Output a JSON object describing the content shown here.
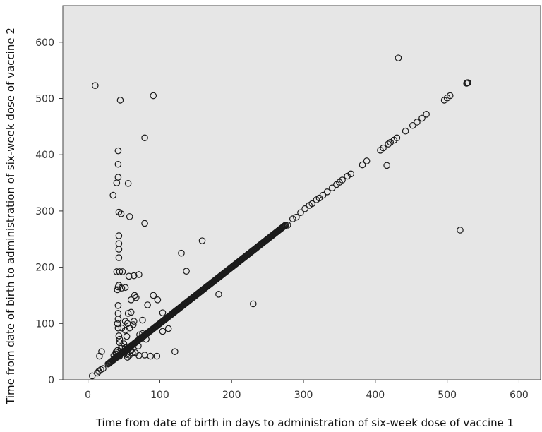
{
  "chart_data": {
    "type": "scatter",
    "title": "",
    "xlabel": "Time from date of birth in days to administration of six-week dose of vaccine 1",
    "ylabel": "Time from date of birth to administration of six-week dose of vaccine 2",
    "xlim": [
      -35,
      630
    ],
    "ylim": [
      0,
      665
    ],
    "xticks": [
      0,
      100,
      200,
      300,
      400,
      500,
      600
    ],
    "yticks": [
      0,
      100,
      200,
      300,
      400,
      500,
      600
    ],
    "grid": false,
    "legend": "none",
    "colors": {
      "plot_background": "#e6e6e6",
      "marker": "#1a1a1a"
    },
    "diagonal_band": {
      "x_start": 28,
      "x_end": 275,
      "step": 1
    },
    "points": [
      [
        6,
        7
      ],
      [
        13,
        12
      ],
      [
        15,
        15
      ],
      [
        18,
        18
      ],
      [
        21,
        20
      ],
      [
        16,
        42
      ],
      [
        19,
        50
      ],
      [
        10,
        523
      ],
      [
        45,
        497
      ],
      [
        91,
        505
      ],
      [
        79,
        430
      ],
      [
        432,
        572
      ],
      [
        518,
        266
      ],
      [
        230,
        135
      ],
      [
        182,
        152
      ],
      [
        416,
        381
      ],
      [
        528,
        528
      ],
      [
        529,
        528
      ],
      [
        42,
        407
      ],
      [
        42,
        383
      ],
      [
        42,
        360
      ],
      [
        40,
        350
      ],
      [
        56,
        349
      ],
      [
        35,
        328
      ],
      [
        43,
        298
      ],
      [
        46,
        295
      ],
      [
        58,
        290
      ],
      [
        79,
        278
      ],
      [
        43,
        256
      ],
      [
        43,
        242
      ],
      [
        43,
        232
      ],
      [
        43,
        217
      ],
      [
        130,
        225
      ],
      [
        159,
        247
      ],
      [
        137,
        193
      ],
      [
        40,
        192
      ],
      [
        44,
        192
      ],
      [
        48,
        192
      ],
      [
        71,
        187
      ],
      [
        64,
        185
      ],
      [
        57,
        184
      ],
      [
        43,
        168
      ],
      [
        42,
        165
      ],
      [
        47,
        163
      ],
      [
        41,
        160
      ],
      [
        52,
        164
      ],
      [
        65,
        150
      ],
      [
        91,
        150
      ],
      [
        67,
        146
      ],
      [
        60,
        142
      ],
      [
        97,
        142
      ],
      [
        42,
        132
      ],
      [
        83,
        133
      ],
      [
        42,
        118
      ],
      [
        56,
        118
      ],
      [
        60,
        120
      ],
      [
        104,
        119
      ],
      [
        42,
        108
      ],
      [
        52,
        104
      ],
      [
        55,
        100
      ],
      [
        64,
        104
      ],
      [
        41,
        100
      ],
      [
        63,
        98
      ],
      [
        76,
        106
      ],
      [
        42,
        92
      ],
      [
        47,
        92
      ],
      [
        52,
        88
      ],
      [
        58,
        92
      ],
      [
        112,
        91
      ],
      [
        104,
        86
      ],
      [
        43,
        78
      ],
      [
        44,
        72
      ],
      [
        54,
        77
      ],
      [
        72,
        80
      ],
      [
        76,
        82
      ],
      [
        44,
        66
      ],
      [
        47,
        60
      ],
      [
        52,
        57
      ],
      [
        41,
        52
      ],
      [
        46,
        56
      ],
      [
        48,
        50
      ],
      [
        60,
        52
      ],
      [
        70,
        60
      ],
      [
        39,
        46
      ],
      [
        44,
        42
      ],
      [
        55,
        40
      ],
      [
        54,
        45
      ],
      [
        58,
        44
      ],
      [
        62,
        48
      ],
      [
        66,
        48
      ],
      [
        71,
        43
      ],
      [
        79,
        44
      ],
      [
        87,
        42
      ],
      [
        96,
        42
      ],
      [
        121,
        50
      ],
      [
        81,
        72
      ],
      [
        36,
        43
      ],
      [
        39,
        49
      ],
      [
        53,
        52
      ],
      [
        50,
        64
      ],
      [
        278,
        275
      ],
      [
        285,
        286
      ],
      [
        290,
        289
      ],
      [
        296,
        297
      ],
      [
        302,
        304
      ],
      [
        308,
        310
      ],
      [
        312,
        313
      ],
      [
        318,
        320
      ],
      [
        322,
        323
      ],
      [
        327,
        328
      ],
      [
        333,
        334
      ],
      [
        340,
        341
      ],
      [
        346,
        347
      ],
      [
        350,
        351
      ],
      [
        354,
        355
      ],
      [
        361,
        362
      ],
      [
        366,
        366
      ],
      [
        382,
        382
      ],
      [
        388,
        389
      ],
      [
        407,
        408
      ],
      [
        411,
        412
      ],
      [
        418,
        419
      ],
      [
        421,
        422
      ],
      [
        426,
        426
      ],
      [
        430,
        430
      ],
      [
        442,
        442
      ],
      [
        452,
        452
      ],
      [
        458,
        458
      ],
      [
        465,
        465
      ],
      [
        471,
        472
      ],
      [
        496,
        497
      ],
      [
        500,
        501
      ],
      [
        504,
        505
      ],
      [
        527,
        527
      ]
    ]
  }
}
